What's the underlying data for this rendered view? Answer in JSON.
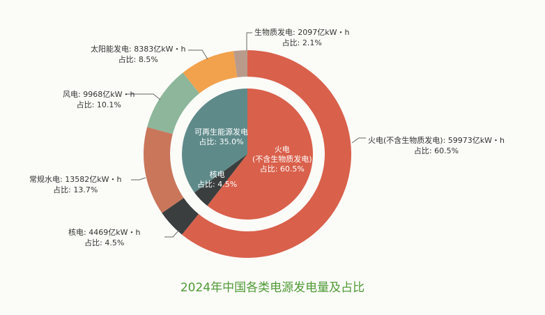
{
  "chart_data": {
    "type": "pie",
    "title": "2024年中国各类电源发电量及占比",
    "unit": "亿kW·h",
    "outer_ring": [
      {
        "name": "火电(不含生物质发电)",
        "value": 59973,
        "share_label": "占比: 60.5%",
        "percent": 60.5,
        "value_label": "火电(不含生物质发电): 59973亿kW・h",
        "color": "#d9604b"
      },
      {
        "name": "核电",
        "value": 4469,
        "share_label": "占比: 4.5%",
        "percent": 4.5,
        "value_label": "核电: 4469亿kW・h",
        "color": "#3a3e3e"
      },
      {
        "name": "常规水电",
        "value": 13582,
        "share_label": "占比: 13.7%",
        "percent": 13.7,
        "value_label": "常规水电: 13582亿kW・h",
        "color": "#c9765b"
      },
      {
        "name": "风电",
        "value": 9968,
        "share_label": "占比: 10.1%",
        "percent": 10.1,
        "value_label": "风电: 9968亿kW・h",
        "color": "#8db69b"
      },
      {
        "name": "太阳能发电",
        "value": 8383,
        "share_label": "占比: 8.5%",
        "percent": 8.5,
        "value_label": "太阳能发电: 8383亿kW・h",
        "color": "#f2a24c"
      },
      {
        "name": "生物质发电",
        "value": 2097,
        "share_label": "占比: 2.1%",
        "percent": 2.1,
        "value_label": "生物质发电: 2097亿kW・h",
        "color": "#b99b8c"
      }
    ],
    "inner_pie": [
      {
        "name": "火电",
        "sub": "(不含生物质发电)",
        "percent": 60.5,
        "share_label": "占比: 60.5%",
        "color": "#d9604b"
      },
      {
        "name": "核电",
        "percent": 4.5,
        "share_label": "占比: 4.5%",
        "color": "#3a3e3e"
      },
      {
        "name": "可再生能源发电",
        "percent": 35.0,
        "share_label": "占比: 35.0%",
        "color": "#5f8a8a"
      }
    ]
  }
}
